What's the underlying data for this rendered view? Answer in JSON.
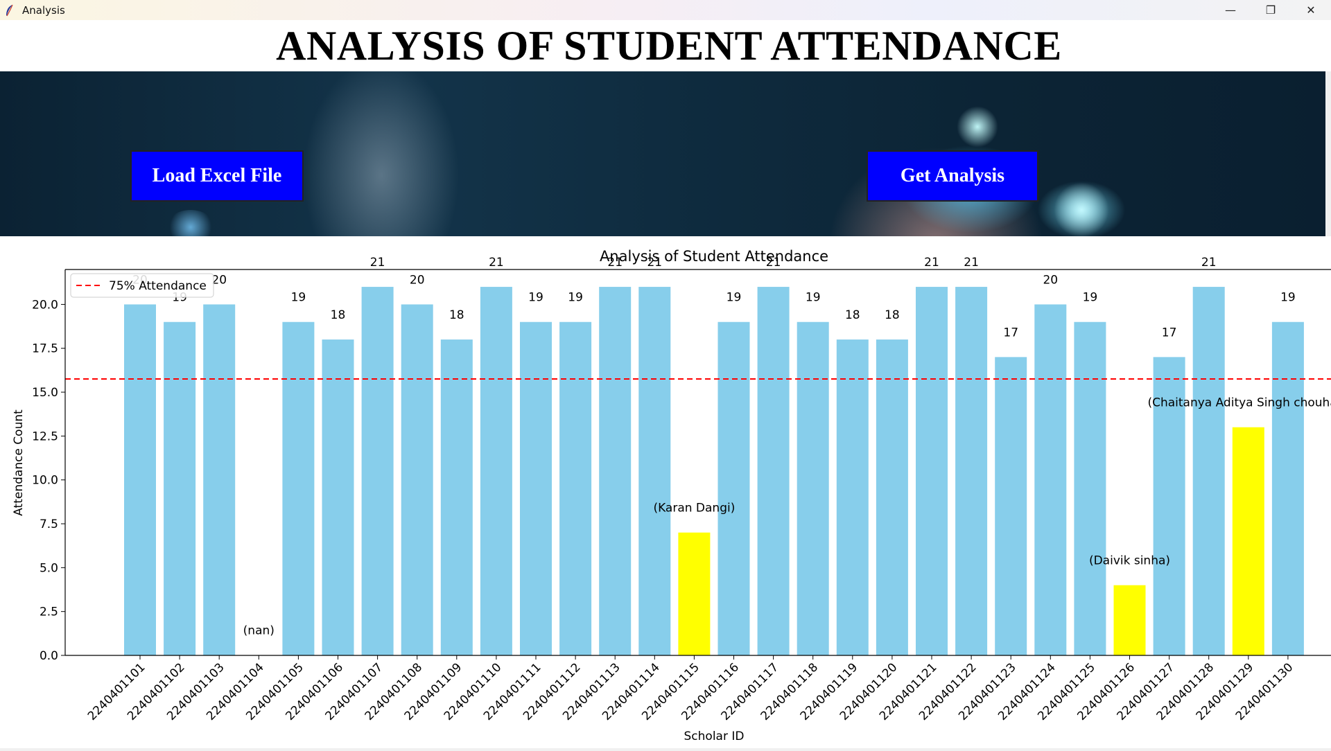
{
  "window": {
    "title": "Analysis",
    "minimize_glyph": "—",
    "restore_glyph": "❐",
    "close_glyph": "✕"
  },
  "header": {
    "title": "ANALYSIS OF STUDENT ATTENDANCE"
  },
  "buttons": {
    "load_label": "Load Excel File",
    "analysis_label": "Get Analysis",
    "color": "#0000ff"
  },
  "chart_data": {
    "type": "bar",
    "title": "Analysis of Student Attendance",
    "xlabel": "Scholar ID",
    "ylabel": "Attendance Count",
    "ylim": [
      0,
      22
    ],
    "yticks": [
      "0.0",
      "2.5",
      "5.0",
      "7.5",
      "10.0",
      "12.5",
      "15.0",
      "17.5",
      "20.0"
    ],
    "categories": [
      "2240401101",
      "2240401102",
      "2240401103",
      "2240401104",
      "2240401105",
      "2240401106",
      "2240401107",
      "2240401108",
      "2240401109",
      "2240401110",
      "2240401111",
      "2240401112",
      "2240401113",
      "2240401114",
      "2240401115",
      "2240401116",
      "2240401117",
      "2240401118",
      "2240401119",
      "2240401120",
      "2240401121",
      "2240401122",
      "2240401123",
      "2240401124",
      "2240401125",
      "2240401126",
      "2240401127",
      "2240401128",
      "2240401129",
      "2240401130"
    ],
    "values": [
      20,
      19,
      20,
      0,
      19,
      18,
      21,
      20,
      18,
      21,
      19,
      19,
      21,
      21,
      7,
      19,
      21,
      19,
      18,
      18,
      21,
      21,
      17,
      20,
      19,
      4,
      17,
      21,
      13,
      19
    ],
    "bar_labels": [
      "20",
      "19",
      "20",
      "",
      "19",
      "18",
      "21",
      "20",
      "18",
      "21",
      "19",
      "19",
      "21",
      "21",
      "",
      "19",
      "21",
      "19",
      "18",
      "18",
      "21",
      "21",
      "17",
      "20",
      "19",
      "",
      "17",
      "21",
      "",
      "19"
    ],
    "low_labels": [
      "",
      "",
      "",
      "(nan)",
      "",
      "",
      "",
      "",
      "",
      "",
      "",
      "",
      "",
      "",
      "(Karan Dangi)",
      "",
      "",
      "",
      "",
      "",
      "",
      "",
      "",
      "",
      "",
      "(Daivik sinha)",
      "",
      "",
      "(Chaitanya Aditya Singh chouhan)",
      ""
    ],
    "threshold": 15.75,
    "threshold_label": "75% Attendance",
    "legend_position": "upper left",
    "colors": {
      "normal": "#87ceeb",
      "low": "#ffff00",
      "threshold": "#ff0000"
    }
  }
}
